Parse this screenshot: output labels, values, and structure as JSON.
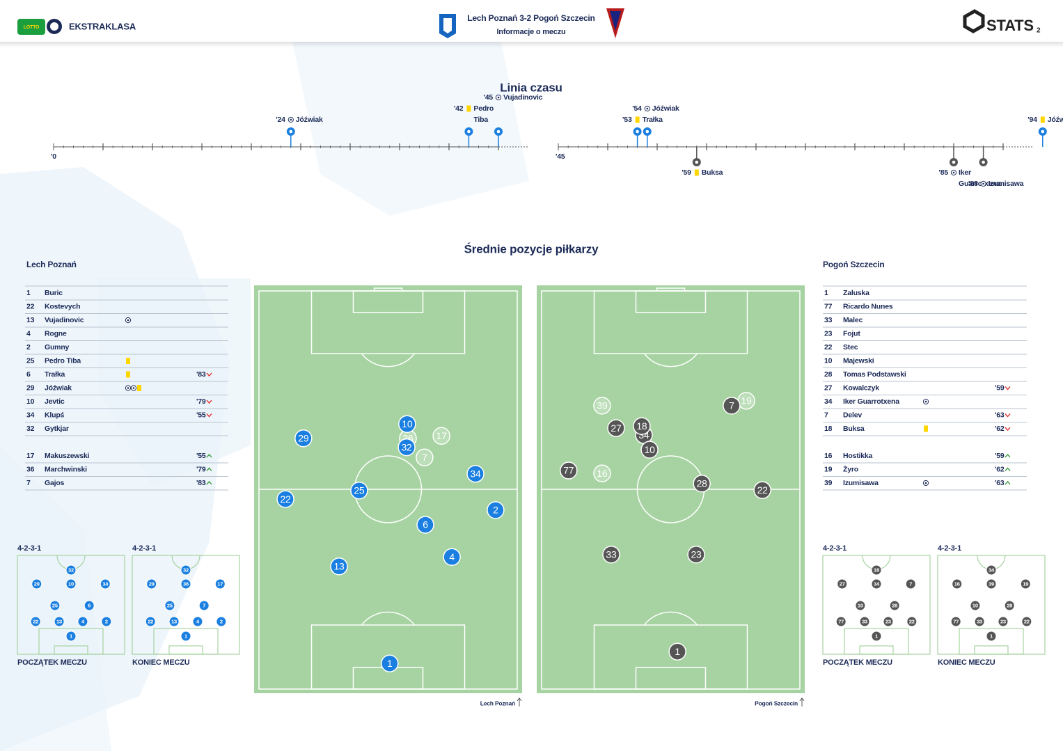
{
  "header": {
    "lotto": "LOTTO",
    "league": "EKSTRAKLASA",
    "title": "Lech Poznań 3-2 Pogoń Szczecin",
    "subtitle": "Informacje o meczu",
    "brand": "STATS",
    "page": "2"
  },
  "timeline": {
    "title": "Linia czasu",
    "halves": [
      {
        "start": {
          "value": 0,
          "label": "'0"
        }
      },
      {
        "start": {
          "value": 45,
          "label": "'45"
        }
      }
    ],
    "events": [
      {
        "minute": {
          "value": 24,
          "label": "'24"
        },
        "kind": "goal",
        "team": "home",
        "half": 1,
        "player": [
          "Jóźwiak"
        ]
      },
      {
        "minute": {
          "value": 42,
          "label": "'42"
        },
        "kind": "yellow",
        "team": "home",
        "half": 1,
        "player": [
          "Pedro",
          "Tiba"
        ]
      },
      {
        "minute": {
          "value": 45,
          "label": "'45"
        },
        "kind": "goal",
        "team": "home",
        "half": 1,
        "player": [
          "Vujadinovic"
        ]
      },
      {
        "minute": {
          "value": 53,
          "label": "'53"
        },
        "kind": "yellow",
        "team": "home",
        "half": 2,
        "player": [
          "Trałka"
        ]
      },
      {
        "minute": {
          "value": 54,
          "label": "'54"
        },
        "kind": "goal",
        "team": "home",
        "half": 2,
        "player": [
          "Jóźwiak"
        ]
      },
      {
        "minute": {
          "value": 59,
          "label": "'59"
        },
        "kind": "yellow",
        "team": "away",
        "half": 2,
        "player": [
          "Buksa"
        ]
      },
      {
        "minute": {
          "value": 85,
          "label": "'85"
        },
        "kind": "goal",
        "team": "away",
        "half": 2,
        "player": [
          "Iker",
          "Guarrotxena"
        ]
      },
      {
        "minute": {
          "value": 88,
          "label": "'88"
        },
        "kind": "goal",
        "team": "away",
        "half": 2,
        "player": [
          "Izumisawa"
        ]
      },
      {
        "minute": {
          "value": 94,
          "label": "'94"
        },
        "kind": "yellow",
        "team": "home",
        "half": 2,
        "player": [
          "Jóźwiak"
        ]
      }
    ]
  },
  "positions_title": "Średnie pozycje piłkarzy",
  "lineups": {
    "home": {
      "team": "Lech Poznań",
      "starters": [
        {
          "number": 1,
          "name": "Buric"
        },
        {
          "number": 22,
          "name": "Kostevych"
        },
        {
          "number": 13,
          "name": "Vujadinovic",
          "events": [
            "goal"
          ]
        },
        {
          "number": 4,
          "name": "Rogne"
        },
        {
          "number": 2,
          "name": "Gumny"
        },
        {
          "number": 25,
          "name": "Pedro Tiba",
          "events": [
            "yellow"
          ]
        },
        {
          "number": 6,
          "name": "Trałka",
          "events": [
            "yellow"
          ],
          "sub": {
            "minute": "'83",
            "dir": "off"
          }
        },
        {
          "number": 29,
          "name": "Jóźwiak",
          "events": [
            "goal",
            "goal",
            "yellow"
          ]
        },
        {
          "number": 10,
          "name": "Jevtic",
          "sub": {
            "minute": "'79",
            "dir": "off"
          }
        },
        {
          "number": 34,
          "name": "Klupś",
          "sub": {
            "minute": "'55",
            "dir": "off"
          }
        },
        {
          "number": 32,
          "name": "Gytkjar"
        }
      ],
      "subs": [
        {
          "number": 17,
          "name": "Makuszewski",
          "sub": {
            "minute": "'55",
            "dir": "on"
          }
        },
        {
          "number": 36,
          "name": "Marchwinski",
          "sub": {
            "minute": "'79",
            "dir": "on"
          }
        },
        {
          "number": 7,
          "name": "Gajos",
          "sub": {
            "minute": "'83",
            "dir": "on"
          }
        }
      ]
    },
    "away": {
      "team": "Pogoń Szczecin",
      "starters": [
        {
          "number": 1,
          "name": "Zaluska"
        },
        {
          "number": 77,
          "name": "Ricardo Nunes"
        },
        {
          "number": 33,
          "name": "Malec"
        },
        {
          "number": 23,
          "name": "Fojut"
        },
        {
          "number": 22,
          "name": "Stec"
        },
        {
          "number": 10,
          "name": "Majewski"
        },
        {
          "number": 28,
          "name": "Tomas Podstawski"
        },
        {
          "number": 27,
          "name": "Kowalczyk",
          "sub": {
            "minute": "'59",
            "dir": "off"
          }
        },
        {
          "number": 34,
          "name": "Iker Guarrotxena",
          "events": [
            "goal"
          ]
        },
        {
          "number": 7,
          "name": "Delev",
          "sub": {
            "minute": "'63",
            "dir": "off"
          }
        },
        {
          "number": 18,
          "name": "Buksa",
          "events": [
            "yellow"
          ],
          "sub": {
            "minute": "'62",
            "dir": "off"
          }
        }
      ],
      "subs": [
        {
          "number": 16,
          "name": "Hostikka",
          "sub": {
            "minute": "'59",
            "dir": "on"
          }
        },
        {
          "number": 19,
          "name": "Żyro",
          "sub": {
            "minute": "'62",
            "dir": "on"
          }
        },
        {
          "number": 39,
          "name": "Izumisawa",
          "events": [
            "goal"
          ],
          "sub": {
            "minute": "'63",
            "dir": "on"
          }
        }
      ]
    }
  },
  "positions": {
    "home": {
      "caption": "Lech Poznań",
      "players": [
        {
          "number": 29,
          "x": 18.4,
          "y": 37.5
        },
        {
          "number": 10,
          "x": 57.1,
          "y": 34.0
        },
        {
          "number": 32,
          "x": 56.9,
          "y": 39.7
        },
        {
          "number": 34,
          "x": 82.6,
          "y": 46.2
        },
        {
          "number": 25,
          "x": 39.2,
          "y": 50.3
        },
        {
          "number": 22,
          "x": 11.7,
          "y": 52.4
        },
        {
          "number": 2,
          "x": 90.1,
          "y": 55.1
        },
        {
          "number": 6,
          "x": 63.9,
          "y": 58.7
        },
        {
          "number": 4,
          "x": 73.8,
          "y": 66.6
        },
        {
          "number": 13,
          "x": 31.7,
          "y": 68.9
        },
        {
          "number": 1,
          "x": 50.6,
          "y": 92.7
        }
      ],
      "substitutes": [
        {
          "number": 36,
          "x": 57.4,
          "y": 37.5
        },
        {
          "number": 17,
          "x": 69.9,
          "y": 36.9
        },
        {
          "number": 7,
          "x": 63.6,
          "y": 42.2
        }
      ]
    },
    "away": {
      "caption": "Pogoń Szczecin",
      "players": [
        {
          "number": 7,
          "x": 72.7,
          "y": 29.5
        },
        {
          "number": 27,
          "x": 29.6,
          "y": 35.0
        },
        {
          "number": 34,
          "x": 40.0,
          "y": 36.7
        },
        {
          "number": 18,
          "x": 39.2,
          "y": 34.5
        },
        {
          "number": 10,
          "x": 42.1,
          "y": 40.3
        },
        {
          "number": 77,
          "x": 11.9,
          "y": 45.4
        },
        {
          "number": 28,
          "x": 61.6,
          "y": 48.6
        },
        {
          "number": 22,
          "x": 84.2,
          "y": 50.2
        },
        {
          "number": 33,
          "x": 27.8,
          "y": 66.0
        },
        {
          "number": 23,
          "x": 59.5,
          "y": 66.0
        },
        {
          "number": 1,
          "x": 52.5,
          "y": 89.8
        }
      ],
      "substitutes": [
        {
          "number": 39,
          "x": 24.4,
          "y": 29.5
        },
        {
          "number": 19,
          "x": 78.2,
          "y": 28.3
        },
        {
          "number": 16,
          "x": 24.4,
          "y": 46.1
        }
      ]
    }
  },
  "formations": [
    {
      "label": "4-2-3-1",
      "caption": "POCZĄTEK MECZU",
      "team": "home",
      "rows": [
        [
          32
        ],
        [
          29,
          10,
          34
        ],
        [
          25,
          6
        ],
        [
          22,
          13,
          4,
          2
        ],
        [
          1
        ]
      ]
    },
    {
      "label": "4-2-3-1",
      "caption": "KONIEC MECZU",
      "team": "home",
      "rows": [
        [
          32
        ],
        [
          29,
          36,
          17
        ],
        [
          25,
          7
        ],
        [
          22,
          13,
          4,
          2
        ],
        [
          1
        ]
      ]
    },
    {
      "label": "4-2-3-1",
      "caption": "POCZĄTEK MECZU",
      "team": "away",
      "rows": [
        [
          18
        ],
        [
          27,
          34,
          7
        ],
        [
          10,
          28
        ],
        [
          77,
          33,
          23,
          22
        ],
        [
          1
        ]
      ]
    },
    {
      "label": "4-2-3-1",
      "caption": "KONIEC MECZU",
      "team": "away",
      "rows": [
        [
          34
        ],
        [
          16,
          39,
          19
        ],
        [
          10,
          28
        ],
        [
          77,
          33,
          23,
          22
        ],
        [
          1
        ]
      ]
    }
  ]
}
